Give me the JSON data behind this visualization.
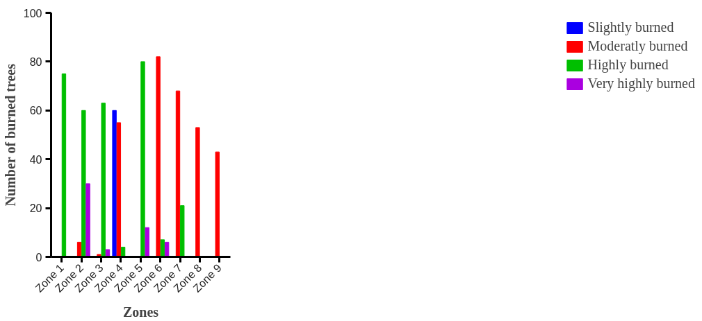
{
  "chart_data": {
    "type": "bar",
    "xlabel": "Zones",
    "ylabel": "Number of burned trees",
    "categories": [
      "Zone 1",
      "Zone 2",
      "Zone 3",
      "Zone 4",
      "Zone 5",
      "Zone 6",
      "Zone 7",
      "Zone 8",
      "Zone 9"
    ],
    "series": [
      {
        "name": "Slightly burned",
        "color": "#0000ff",
        "values": [
          0,
          0,
          0,
          60,
          0,
          0,
          0,
          0,
          0
        ]
      },
      {
        "name": "Moderatly burned",
        "color": "#ff0000",
        "values": [
          0,
          6,
          1,
          55,
          0,
          82,
          68,
          53,
          43
        ]
      },
      {
        "name": "Highly burned",
        "color": "#00bf00",
        "values": [
          75,
          60,
          63,
          4,
          80,
          7,
          21,
          0,
          0
        ]
      },
      {
        "name": "Very highly burned",
        "color": "#aa00e0",
        "values": [
          0,
          30,
          3,
          0,
          12,
          6,
          0,
          0,
          0
        ]
      }
    ],
    "ylim": [
      0,
      100
    ],
    "yticks": [
      0,
      20,
      40,
      60,
      80,
      100
    ],
    "grid": false,
    "legend": "top right"
  }
}
